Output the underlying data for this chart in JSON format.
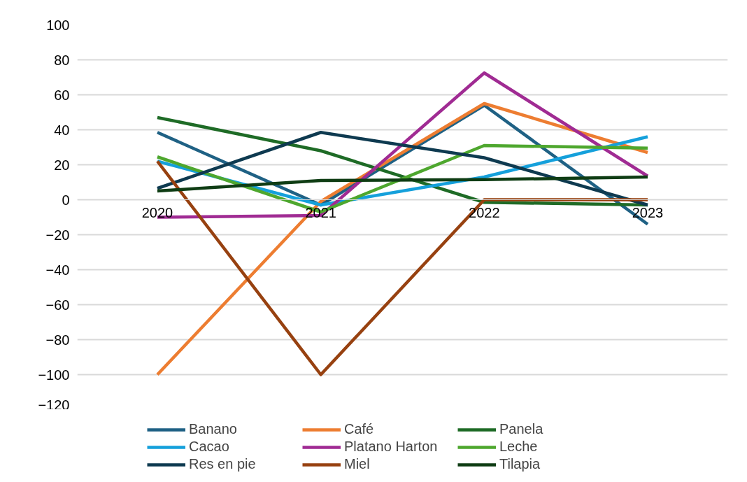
{
  "chart_data": {
    "type": "line",
    "categories": [
      "2020",
      "2021",
      "2022",
      "2023"
    ],
    "ylim": [
      -120,
      100
    ],
    "yticks": [
      -120,
      -100,
      -80,
      -60,
      -40,
      -20,
      0,
      20,
      40,
      60,
      80,
      100
    ],
    "grid": "y",
    "legend": "bottom",
    "series": [
      {
        "name": "Banano",
        "color": "#1f6184",
        "values": [
          38.5,
          -3,
          54,
          -14
        ]
      },
      {
        "name": "Café",
        "color": "#ed7d31",
        "values": [
          -100,
          -1,
          55,
          27
        ]
      },
      {
        "name": "Panela",
        "color": "#1e6b26",
        "values": [
          47,
          28,
          -1.5,
          -3
        ]
      },
      {
        "name": "Cacao",
        "color": "#15a0db",
        "values": [
          22,
          -3,
          13,
          36
        ]
      },
      {
        "name": "Platano Harton",
        "color": "#a02b93",
        "values": [
          -10,
          -9,
          72.5,
          13.5
        ]
      },
      {
        "name": "Leche",
        "color": "#4ea72e",
        "values": [
          24.5,
          -7,
          31,
          29.5
        ]
      },
      {
        "name": "Res en pie",
        "color": "#0e3a50",
        "values": [
          6.5,
          38.5,
          24,
          -3
        ]
      },
      {
        "name": "Miel",
        "color": "#974110",
        "values": [
          22,
          -100,
          0,
          0
        ]
      },
      {
        "name": "Tilapia",
        "color": "#0f3d14",
        "values": [
          5,
          11,
          11.5,
          13
        ]
      }
    ]
  }
}
